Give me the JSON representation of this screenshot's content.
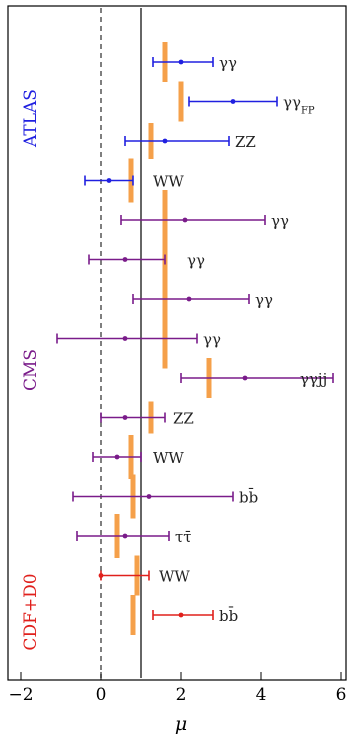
{
  "chart_data": {
    "type": "scatter",
    "xlabel": "μ",
    "ylabel": "",
    "xlim": [
      -2.2,
      6.1
    ],
    "x_ticks": [
      {
        "value": -2,
        "label": "−2"
      },
      {
        "value": 0,
        "label": "0"
      },
      {
        "value": 2,
        "label": "2"
      },
      {
        "value": 4,
        "label": "4"
      },
      {
        "value": 6,
        "label": "6"
      }
    ],
    "reference_lines": [
      {
        "x": 0,
        "style": "dashed",
        "color": "#555555"
      },
      {
        "x": 1,
        "style": "solid",
        "color": "#333333"
      }
    ],
    "groups": [
      {
        "label": "ATLAS",
        "color": "#2020e0"
      },
      {
        "label": "CMS",
        "color": "#7a1c8a"
      },
      {
        "label": "CDF+D0",
        "color": "#e0201c"
      }
    ],
    "measurements": [
      {
        "group": 0,
        "channel": "γγ",
        "sub": "",
        "mu": 2.0,
        "lo": 1.3,
        "hi": 2.8,
        "band": 1.6,
        "band_half": 0.5,
        "color": "#2020e0"
      },
      {
        "group": 0,
        "channel": "γγ",
        "sub": "FP",
        "mu": 3.3,
        "lo": 2.2,
        "hi": 4.4,
        "band": 2.0,
        "band_half": 0.5,
        "color": "#2020e0"
      },
      {
        "group": 0,
        "channel": "ZZ",
        "sub": "",
        "mu": 1.6,
        "lo": 0.6,
        "hi": 3.2,
        "band": 1.25,
        "band_half": 0.45,
        "color": "#2020e0"
      },
      {
        "group": 0,
        "channel": "WW",
        "sub": "",
        "mu": 0.2,
        "lo": -0.4,
        "hi": 0.8,
        "band": 0.75,
        "band_half": 0.55,
        "color": "#2020e0"
      },
      {
        "group": 1,
        "channel": "γγ",
        "sub": "",
        "mu": 2.1,
        "lo": 0.5,
        "hi": 4.1,
        "band": 1.6,
        "band_half": 0.75,
        "color": "#7a1c8a"
      },
      {
        "group": 1,
        "channel": "γγ",
        "sub": "",
        "mu": 0.6,
        "lo": -0.3,
        "hi": 1.6,
        "band": 1.6,
        "band_half": 0.75,
        "color": "#7a1c8a"
      },
      {
        "group": 1,
        "channel": "γγ",
        "sub": "",
        "mu": 2.2,
        "lo": 0.8,
        "hi": 3.7,
        "band": 1.6,
        "band_half": 0.75,
        "color": "#7a1c8a"
      },
      {
        "group": 1,
        "channel": "γγ",
        "sub": "",
        "mu": 0.6,
        "lo": -1.1,
        "hi": 2.4,
        "band": 1.6,
        "band_half": 0.75,
        "color": "#7a1c8a"
      },
      {
        "group": 1,
        "channel": "γγjj",
        "sub": "",
        "mu": 3.6,
        "lo": 2.0,
        "hi": 5.8,
        "band": 2.7,
        "band_half": 0.5,
        "color": "#7a1c8a"
      },
      {
        "group": 1,
        "channel": "ZZ",
        "sub": "",
        "mu": 0.6,
        "lo": 0.0,
        "hi": 1.6,
        "band": 1.25,
        "band_half": 0.4,
        "color": "#7a1c8a"
      },
      {
        "group": 1,
        "channel": "WW",
        "sub": "",
        "mu": 0.4,
        "lo": -0.2,
        "hi": 1.0,
        "band": 0.75,
        "band_half": 0.55,
        "color": "#7a1c8a"
      },
      {
        "group": 1,
        "channel": "bb̄",
        "sub": "",
        "mu": 1.2,
        "lo": -0.7,
        "hi": 3.3,
        "band": 0.8,
        "band_half": 0.55,
        "color": "#7a1c8a"
      },
      {
        "group": 1,
        "channel": "ττ̄",
        "sub": "",
        "mu": 0.6,
        "lo": -0.6,
        "hi": 1.7,
        "band": 0.4,
        "band_half": 0.55,
        "color": "#7a1c8a"
      },
      {
        "group": 2,
        "channel": "WW",
        "sub": "",
        "mu": 0.0,
        "lo": 0.0,
        "hi": 1.2,
        "band": 0.9,
        "band_half": 0.5,
        "color": "#e0201c"
      },
      {
        "group": 2,
        "channel": "bb̄",
        "sub": "",
        "mu": 2.0,
        "lo": 1.3,
        "hi": 2.8,
        "band": 0.8,
        "band_half": 0.5,
        "color": "#e0201c"
      }
    ],
    "band_color": "#f5a04a",
    "grid": false,
    "legend": "none"
  }
}
